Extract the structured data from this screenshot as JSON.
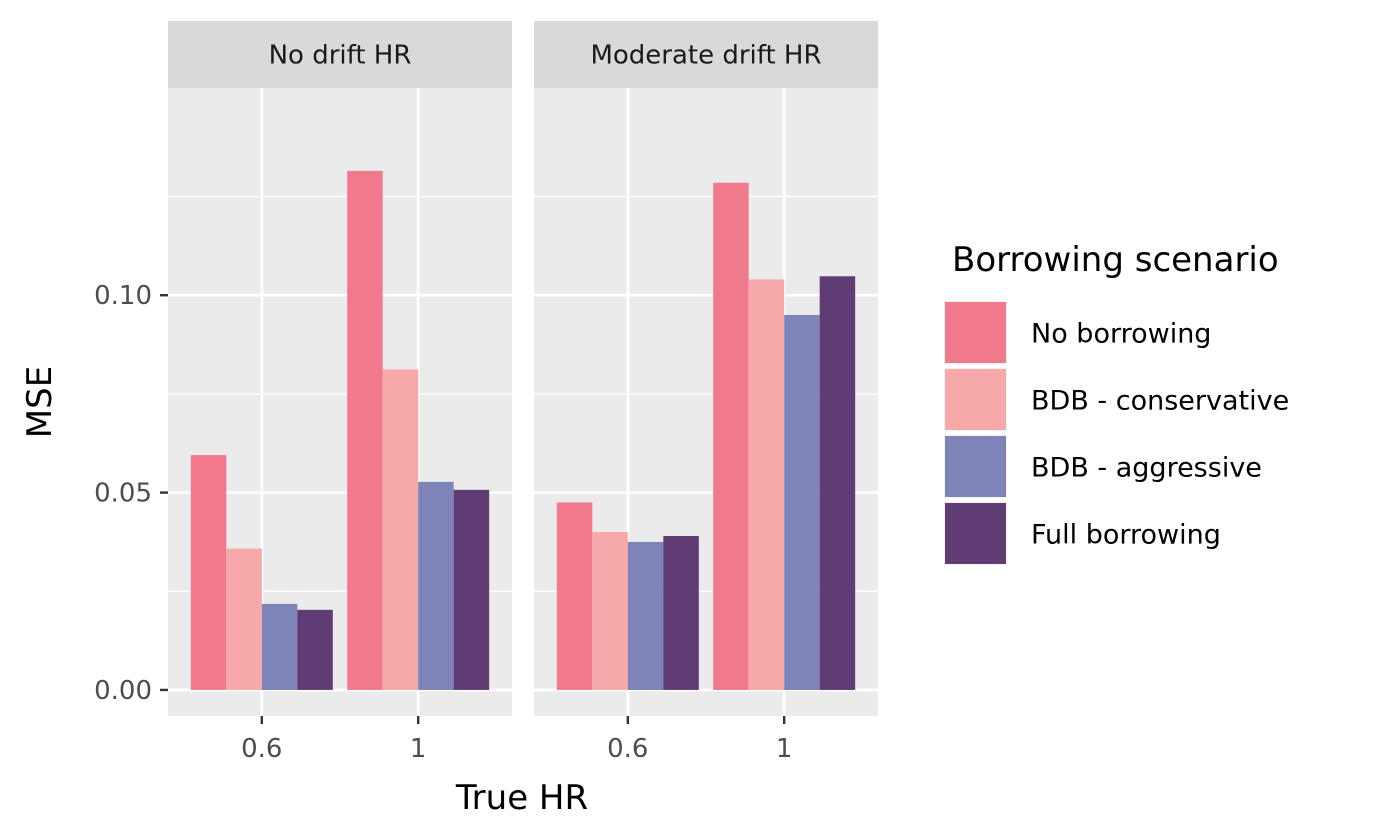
{
  "chart_data": {
    "type": "bar",
    "facets": [
      "No drift HR",
      "Moderate drift HR"
    ],
    "categories": [
      "0.6",
      "1"
    ],
    "series": [
      {
        "name": "No borrowing",
        "color": "#F07A8C",
        "values": [
          [
            0.0595,
            0.1315
          ],
          [
            0.0475,
            0.1285
          ]
        ]
      },
      {
        "name": "BDB - conservative",
        "color": "#F7A8A8",
        "values": [
          [
            0.0358,
            0.0812
          ],
          [
            0.04,
            0.104
          ]
        ]
      },
      {
        "name": "BDB - aggressive",
        "color": "#7E83B8",
        "values": [
          [
            0.0218,
            0.0527
          ],
          [
            0.0375,
            0.095
          ]
        ]
      },
      {
        "name": "Full borrowing",
        "color": "#5F3C73",
        "values": [
          [
            0.0203,
            0.0507
          ],
          [
            0.039,
            0.1048
          ]
        ]
      }
    ],
    "xlabel": "True HR",
    "ylabel": "MSE",
    "ylim": [
      -0.0066,
      0.1525
    ],
    "yticks": [
      {
        "value": 0.0,
        "label": "0.00"
      },
      {
        "value": 0.05,
        "label": "0.05"
      },
      {
        "value": 0.1,
        "label": "0.10"
      }
    ],
    "legend": {
      "title": "Borrowing scenario",
      "position": "right"
    },
    "panel_background": "#EBEBEB",
    "strip_background": "#D9D9D9",
    "grid": true
  }
}
